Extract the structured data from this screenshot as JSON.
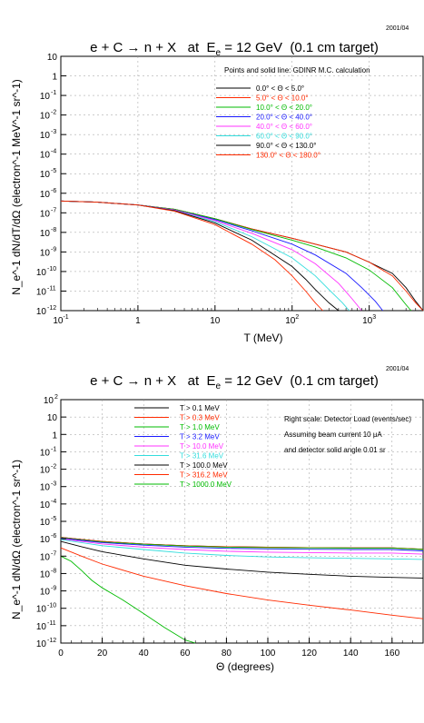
{
  "chart_data": [
    {
      "type": "line",
      "date": "2001/04",
      "title": "e + C → n + X   at  E_e = 12 GeV  (0.1 cm target)",
      "xlabel": "T (MeV)",
      "ylabel": "N_e^-1 dN/dT/dΩ  (electron^-1 MeV^-1 sr^-1)",
      "xscale": "log",
      "yscale": "log",
      "xlim": [
        0.1,
        5000
      ],
      "ylim": [
        1e-12,
        10
      ],
      "x_ticks": [
        {
          "value": 0.1,
          "base": "10",
          "exp": "-1"
        },
        {
          "value": 1,
          "base": "1",
          "exp": ""
        },
        {
          "value": 10,
          "base": "10",
          "exp": ""
        },
        {
          "value": 100,
          "base": "10",
          "exp": "2"
        },
        {
          "value": 1000,
          "base": "10",
          "exp": "3"
        }
      ],
      "y_ticks": [
        {
          "value": 10,
          "base": "10",
          "exp": ""
        },
        {
          "value": 1,
          "base": "1",
          "exp": ""
        },
        {
          "value": 0.1,
          "base": "10",
          "exp": "-1"
        },
        {
          "value": 0.01,
          "base": "10",
          "exp": "-2"
        },
        {
          "value": 0.001,
          "base": "10",
          "exp": "-3"
        },
        {
          "value": 0.0001,
          "base": "10",
          "exp": "-4"
        },
        {
          "value": 1e-05,
          "base": "10",
          "exp": "-5"
        },
        {
          "value": 1e-06,
          "base": "10",
          "exp": "-6"
        },
        {
          "value": 1e-07,
          "base": "10",
          "exp": "-7"
        },
        {
          "value": 1e-08,
          "base": "10",
          "exp": "-8"
        },
        {
          "value": 1e-09,
          "base": "10",
          "exp": "-9"
        },
        {
          "value": 1e-10,
          "base": "10",
          "exp": "-10"
        },
        {
          "value": 1e-11,
          "base": "10",
          "exp": "-11"
        },
        {
          "value": 1e-12,
          "base": "10",
          "exp": "-12"
        }
      ],
      "annotation": "Points and solid line:  GDINR  M.C. calculation",
      "legend_position": "top-right",
      "series": [
        {
          "name": "0.0° < Θ <  5.0°",
          "color": "#000000",
          "x": [
            0.1,
            0.3,
            1,
            3,
            10,
            30,
            100,
            200,
            500,
            1000,
            2000,
            3000,
            4000,
            5000
          ],
          "y": [
            4e-07,
            3.5e-07,
            2.5e-07,
            1.5e-07,
            5e-08,
            1.5e-08,
            5e-09,
            2.5e-09,
            1e-09,
            3e-10,
            8e-11,
            1.5e-11,
            3e-12,
            1e-12
          ]
        },
        {
          "name": "5.0° < Θ < 10.0°",
          "color": "#ff2a00",
          "x": [
            0.1,
            0.3,
            1,
            3,
            10,
            30,
            100,
            200,
            500,
            1000,
            2000,
            3000,
            4000,
            5000
          ],
          "y": [
            4e-07,
            3.5e-07,
            2.5e-07,
            1.5e-07,
            5e-08,
            1.5e-08,
            5e-09,
            2.5e-09,
            1e-09,
            3e-10,
            6e-11,
            1e-11,
            2.5e-12,
            1e-12
          ]
        },
        {
          "name": "10.0° < Θ < 20.0°",
          "color": "#00bb00",
          "x": [
            0.1,
            0.3,
            1,
            3,
            10,
            30,
            100,
            200,
            500,
            1000,
            2000,
            3000,
            3500
          ],
          "y": [
            4e-07,
            3.5e-07,
            2.5e-07,
            1.5e-07,
            5e-08,
            1.4e-08,
            4e-09,
            1.8e-09,
            5e-10,
            1.2e-10,
            1.5e-11,
            2e-12,
            1e-12
          ]
        },
        {
          "name": "20.0° < Θ < 40.0°",
          "color": "#1a1aff",
          "x": [
            0.1,
            0.3,
            1,
            3,
            10,
            30,
            100,
            200,
            500,
            800,
            1200,
            1500
          ],
          "y": [
            4e-07,
            3.5e-07,
            2.5e-07,
            1.4e-07,
            4.5e-08,
            1.2e-08,
            2.5e-09,
            7e-10,
            8e-11,
            1.5e-11,
            3e-12,
            1e-12
          ]
        },
        {
          "name": "40.0° < Θ < 60.0°",
          "color": "#ff33ff",
          "x": [
            0.1,
            0.3,
            1,
            3,
            10,
            30,
            100,
            200,
            400,
            600,
            800
          ],
          "y": [
            4e-07,
            3.5e-07,
            2.5e-07,
            1.4e-07,
            4e-08,
            9e-09,
            1.3e-09,
            2.5e-10,
            2.5e-11,
            4e-12,
            1e-12
          ]
        },
        {
          "name": "60.0° < Θ < 90.0°",
          "color": "#33dddd",
          "x": [
            0.1,
            0.3,
            1,
            3,
            10,
            30,
            100,
            200,
            300,
            450,
            550
          ],
          "y": [
            4e-07,
            3.5e-07,
            2.5e-07,
            1.3e-07,
            3.5e-08,
            6e-09,
            5e-10,
            6e-11,
            1.2e-11,
            2.5e-12,
            1e-12
          ]
        },
        {
          "name": "90.0° < Θ < 130.0°",
          "color": "#000000",
          "x": [
            0.1,
            0.3,
            1,
            3,
            10,
            30,
            100,
            150,
            200,
            300,
            400
          ],
          "y": [
            4e-07,
            3.5e-07,
            2.5e-07,
            1.3e-07,
            3e-08,
            4e-09,
            1.8e-10,
            4e-11,
            1.2e-11,
            2.5e-12,
            1e-12
          ]
        },
        {
          "name": "130.0° < Θ < 180.0°",
          "color": "#ff2a00",
          "x": [
            0.1,
            0.3,
            1,
            3,
            10,
            30,
            60,
            100,
            150,
            200,
            250
          ],
          "y": [
            4e-07,
            3.5e-07,
            2.5e-07,
            1.2e-07,
            2.5e-08,
            2.5e-09,
            4e-10,
            6e-11,
            1e-11,
            2.5e-12,
            1e-12
          ]
        }
      ]
    },
    {
      "type": "line",
      "date": "2001/04",
      "title": "e + C → n + X   at  E_e = 12 GeV  (0.1 cm target)",
      "xlabel": "Θ (degrees)",
      "ylabel": "N_e^-1 dN/dΩ  (electron^-1 sr^-1)",
      "xscale": "linear",
      "yscale": "log",
      "xlim": [
        0,
        175
      ],
      "ylim": [
        1e-12,
        100
      ],
      "x_ticks": [
        {
          "value": 0,
          "base": "0",
          "exp": ""
        },
        {
          "value": 20,
          "base": "20",
          "exp": ""
        },
        {
          "value": 40,
          "base": "40",
          "exp": ""
        },
        {
          "value": 60,
          "base": "60",
          "exp": ""
        },
        {
          "value": 80,
          "base": "80",
          "exp": ""
        },
        {
          "value": 100,
          "base": "100",
          "exp": ""
        },
        {
          "value": 120,
          "base": "120",
          "exp": ""
        },
        {
          "value": 140,
          "base": "140",
          "exp": ""
        },
        {
          "value": 160,
          "base": "160",
          "exp": ""
        }
      ],
      "y_ticks": [
        {
          "value": 100,
          "base": "10",
          "exp": "2"
        },
        {
          "value": 10,
          "base": "10",
          "exp": ""
        },
        {
          "value": 1,
          "base": "1",
          "exp": ""
        },
        {
          "value": 0.1,
          "base": "10",
          "exp": "-1"
        },
        {
          "value": 0.01,
          "base": "10",
          "exp": "-2"
        },
        {
          "value": 0.001,
          "base": "10",
          "exp": "-3"
        },
        {
          "value": 0.0001,
          "base": "10",
          "exp": "-4"
        },
        {
          "value": 1e-05,
          "base": "10",
          "exp": "-5"
        },
        {
          "value": 1e-06,
          "base": "10",
          "exp": "-6"
        },
        {
          "value": 1e-07,
          "base": "10",
          "exp": "-7"
        },
        {
          "value": 1e-08,
          "base": "10",
          "exp": "-8"
        },
        {
          "value": 1e-09,
          "base": "10",
          "exp": "-9"
        },
        {
          "value": 1e-10,
          "base": "10",
          "exp": "-10"
        },
        {
          "value": 1e-11,
          "base": "10",
          "exp": "-11"
        },
        {
          "value": 1e-12,
          "base": "10",
          "exp": "-12"
        }
      ],
      "annotations": [
        "Right scale: Detector Load (events/sec)",
        "Assuming beam current 10 μA",
        "and detector solid angle 0.01 sr"
      ],
      "legend_position": "top-left",
      "series": [
        {
          "name": "T >   0.1 MeV",
          "color": "#000000",
          "x": [
            0,
            10,
            20,
            40,
            60,
            80,
            100,
            120,
            140,
            160,
            175
          ],
          "y": [
            1.2e-06,
            9e-07,
            7e-07,
            5e-07,
            4e-07,
            3.5e-07,
            3.3e-07,
            3.1e-07,
            3e-07,
            3e-07,
            2.5e-07
          ]
        },
        {
          "name": "T >   0.3 MeV",
          "color": "#ff2a00",
          "x": [
            0,
            10,
            20,
            40,
            60,
            80,
            100,
            120,
            140,
            160,
            175
          ],
          "y": [
            1.2e-06,
            9e-07,
            7e-07,
            5e-07,
            4e-07,
            3.5e-07,
            3.3e-07,
            3.1e-07,
            3e-07,
            3e-07,
            2.5e-07
          ]
        },
        {
          "name": "T >   1.0 MeV",
          "color": "#00bb00",
          "x": [
            0,
            10,
            20,
            40,
            60,
            80,
            100,
            120,
            140,
            160,
            175
          ],
          "y": [
            1.15e-06,
            8.5e-07,
            6.5e-07,
            4.8e-07,
            3.8e-07,
            3.3e-07,
            3.1e-07,
            3e-07,
            2.9e-07,
            2.9e-07,
            2.4e-07
          ]
        },
        {
          "name": "T >   3.2 MeV",
          "color": "#1a1aff",
          "x": [
            0,
            10,
            20,
            40,
            60,
            80,
            100,
            120,
            140,
            160,
            175
          ],
          "y": [
            1.1e-06,
            8e-07,
            6e-07,
            4.3e-07,
            3.3e-07,
            2.8e-07,
            2.6e-07,
            2.5e-07,
            2.4e-07,
            2.4e-07,
            2e-07
          ]
        },
        {
          "name": "T >  10.0 MeV",
          "color": "#ff33ff",
          "x": [
            0,
            10,
            20,
            40,
            60,
            80,
            100,
            120,
            140,
            160,
            175
          ],
          "y": [
            1e-06,
            7e-07,
            5e-07,
            3.3e-07,
            2.4e-07,
            1.9e-07,
            1.7e-07,
            1.6e-07,
            1.5e-07,
            1.5e-07,
            1.3e-07
          ]
        },
        {
          "name": "T >  31.6 MeV",
          "color": "#33dddd",
          "x": [
            0,
            10,
            20,
            40,
            60,
            80,
            100,
            120,
            140,
            160,
            175
          ],
          "y": [
            9e-07,
            6e-07,
            4e-07,
            2.4e-07,
            1.5e-07,
            1.1e-07,
            9e-08,
            8e-08,
            7.5e-08,
            7e-08,
            6.5e-08
          ]
        },
        {
          "name": "T > 100.0 MeV",
          "color": "#000000",
          "x": [
            0,
            10,
            20,
            40,
            60,
            80,
            100,
            120,
            140,
            160,
            175
          ],
          "y": [
            7e-07,
            3.5e-07,
            1.8e-07,
            7e-08,
            3e-08,
            1.8e-08,
            1.2e-08,
            9e-09,
            7e-09,
            6e-09,
            5.5e-09
          ]
        },
        {
          "name": "T > 316.2 MeV",
          "color": "#ff2a00",
          "x": [
            0,
            10,
            20,
            40,
            60,
            80,
            100,
            120,
            140,
            160,
            175
          ],
          "y": [
            3e-07,
            1e-07,
            3.5e-08,
            7e-09,
            2e-09,
            7e-10,
            3e-10,
            1.5e-10,
            8e-11,
            4e-11,
            2.5e-11
          ]
        },
        {
          "name": "T > 1000.0 MeV",
          "color": "#00bb00",
          "x": [
            0,
            5,
            10,
            15,
            20,
            30,
            40,
            50,
            60,
            65
          ],
          "y": [
            1e-07,
            5e-08,
            1.5e-08,
            4e-09,
            1.5e-09,
            3e-10,
            5e-11,
            8e-12,
            1.5e-12,
            1e-12
          ]
        }
      ]
    }
  ]
}
